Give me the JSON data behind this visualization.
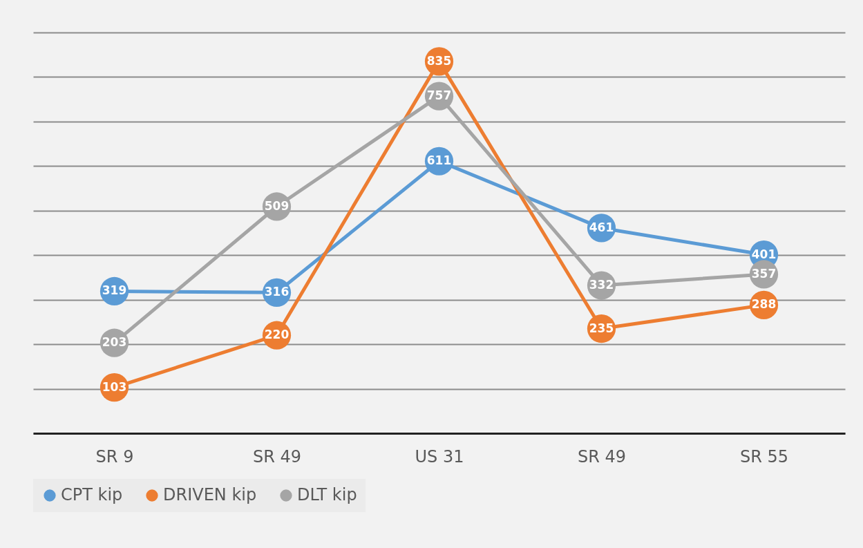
{
  "chart_data": {
    "type": "line",
    "categories": [
      "SR 9",
      "SR 49",
      "US 31",
      "SR 49",
      "SR 55"
    ],
    "series": [
      {
        "name": "CPT kip",
        "color": "#5b9bd5",
        "values": [
          319,
          316,
          611,
          461,
          401
        ]
      },
      {
        "name": "DRIVEN kip",
        "color": "#ed7d31",
        "values": [
          103,
          220,
          835,
          235,
          288
        ]
      },
      {
        "name": "DLT kip",
        "color": "#a5a5a5",
        "values": [
          203,
          509,
          757,
          332,
          357
        ]
      }
    ],
    "ylim": [
      0,
      900
    ],
    "yticks": [
      {
        "value": 0,
        "label": null
      },
      {
        "value": 100,
        "label": null
      },
      {
        "value": 200,
        "label": null
      },
      {
        "value": 300,
        "label": null
      },
      {
        "value": 400,
        "label": null
      },
      {
        "value": 500,
        "label": null
      },
      {
        "value": 600,
        "label": null
      },
      {
        "value": 700,
        "label": null
      },
      {
        "value": 800,
        "label": null
      },
      {
        "value": 900,
        "label": null
      }
    ],
    "tick_labels": "x",
    "grid": "y",
    "legend": "bottom",
    "marker": "circle",
    "line_style": "solid",
    "data_labels": true
  }
}
